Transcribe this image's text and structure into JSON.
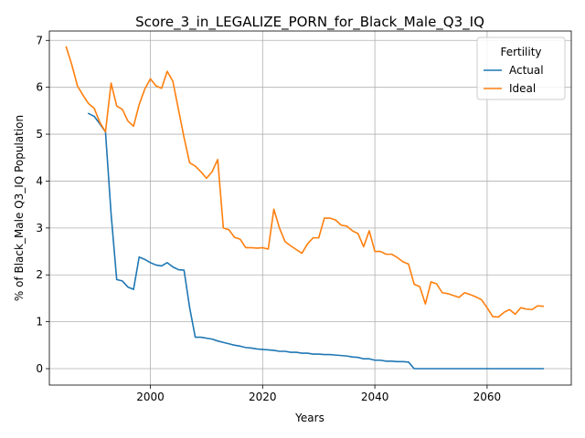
{
  "chart_data": {
    "type": "line",
    "title": "Score_3_in_LEGALIZE_PORN_for_Black_Male_Q3_IQ",
    "xlabel": "Years",
    "ylabel": "% of Black_Male Q3_IQ Population",
    "xlim": [
      1982,
      2075
    ],
    "ylim": [
      -0.35,
      7.2
    ],
    "xticks": [
      2000,
      2020,
      2040,
      2060
    ],
    "yticks": [
      0,
      1,
      2,
      3,
      4,
      5,
      6,
      7
    ],
    "grid": true,
    "legend": {
      "title": "Fertility",
      "placement": "top-right"
    },
    "series": [
      {
        "name": "Actual",
        "color": "#1f77b4",
        "points": [
          [
            1989,
            5.44
          ],
          [
            1990,
            5.38
          ],
          [
            1991,
            5.22
          ],
          [
            1992,
            5.05
          ],
          [
            1993,
            3.3
          ],
          [
            1994,
            1.9
          ],
          [
            1995,
            1.87
          ],
          [
            1996,
            1.74
          ],
          [
            1997,
            1.69
          ],
          [
            1998,
            2.38
          ],
          [
            1999,
            2.33
          ],
          [
            2000,
            2.26
          ],
          [
            2001,
            2.21
          ],
          [
            2002,
            2.19
          ],
          [
            2003,
            2.26
          ],
          [
            2004,
            2.17
          ],
          [
            2005,
            2.11
          ],
          [
            2006,
            2.1
          ],
          [
            2007,
            1.3
          ],
          [
            2008,
            0.67
          ],
          [
            2009,
            0.67
          ],
          [
            2010,
            0.65
          ],
          [
            2011,
            0.63
          ],
          [
            2012,
            0.59
          ],
          [
            2013,
            0.56
          ],
          [
            2014,
            0.53
          ],
          [
            2015,
            0.5
          ],
          [
            2016,
            0.48
          ],
          [
            2017,
            0.45
          ],
          [
            2018,
            0.44
          ],
          [
            2019,
            0.42
          ],
          [
            2020,
            0.41
          ],
          [
            2021,
            0.4
          ],
          [
            2022,
            0.39
          ],
          [
            2023,
            0.37
          ],
          [
            2024,
            0.37
          ],
          [
            2025,
            0.35
          ],
          [
            2026,
            0.35
          ],
          [
            2027,
            0.33
          ],
          [
            2028,
            0.33
          ],
          [
            2029,
            0.31
          ],
          [
            2030,
            0.31
          ],
          [
            2031,
            0.3
          ],
          [
            2032,
            0.3
          ],
          [
            2033,
            0.29
          ],
          [
            2034,
            0.28
          ],
          [
            2035,
            0.27
          ],
          [
            2036,
            0.25
          ],
          [
            2037,
            0.24
          ],
          [
            2038,
            0.21
          ],
          [
            2039,
            0.21
          ],
          [
            2040,
            0.18
          ],
          [
            2041,
            0.18
          ],
          [
            2042,
            0.16
          ],
          [
            2043,
            0.16
          ],
          [
            2044,
            0.15
          ],
          [
            2045,
            0.15
          ],
          [
            2046,
            0.14
          ],
          [
            2047,
            0.0
          ],
          [
            2048,
            0.0
          ],
          [
            2050,
            0.0
          ],
          [
            2055,
            0.0
          ],
          [
            2060,
            0.0
          ],
          [
            2065,
            0.0
          ],
          [
            2070,
            0.0
          ]
        ]
      },
      {
        "name": "Ideal",
        "color": "#ff7f0e",
        "points": [
          [
            1985,
            6.86
          ],
          [
            1986,
            6.48
          ],
          [
            1987,
            6.03
          ],
          [
            1988,
            5.83
          ],
          [
            1989,
            5.65
          ],
          [
            1990,
            5.55
          ],
          [
            1991,
            5.25
          ],
          [
            1992,
            5.05
          ],
          [
            1993,
            6.09
          ],
          [
            1994,
            5.6
          ],
          [
            1995,
            5.53
          ],
          [
            1996,
            5.28
          ],
          [
            1997,
            5.17
          ],
          [
            1998,
            5.63
          ],
          [
            1999,
            5.96
          ],
          [
            2000,
            6.18
          ],
          [
            2001,
            6.03
          ],
          [
            2002,
            5.98
          ],
          [
            2003,
            6.34
          ],
          [
            2004,
            6.13
          ],
          [
            2005,
            5.53
          ],
          [
            2006,
            4.93
          ],
          [
            2007,
            4.39
          ],
          [
            2008,
            4.32
          ],
          [
            2009,
            4.2
          ],
          [
            2010,
            4.06
          ],
          [
            2011,
            4.2
          ],
          [
            2012,
            4.46
          ],
          [
            2013,
            3.0
          ],
          [
            2014,
            2.96
          ],
          [
            2015,
            2.8
          ],
          [
            2016,
            2.76
          ],
          [
            2017,
            2.58
          ],
          [
            2018,
            2.58
          ],
          [
            2019,
            2.57
          ],
          [
            2020,
            2.58
          ],
          [
            2021,
            2.55
          ],
          [
            2022,
            3.4
          ],
          [
            2023,
            3.0
          ],
          [
            2024,
            2.71
          ],
          [
            2025,
            2.62
          ],
          [
            2026,
            2.54
          ],
          [
            2027,
            2.46
          ],
          [
            2028,
            2.66
          ],
          [
            2029,
            2.79
          ],
          [
            2030,
            2.79
          ],
          [
            2031,
            3.21
          ],
          [
            2032,
            3.21
          ],
          [
            2033,
            3.17
          ],
          [
            2034,
            3.06
          ],
          [
            2035,
            3.04
          ],
          [
            2036,
            2.94
          ],
          [
            2037,
            2.88
          ],
          [
            2038,
            2.6
          ],
          [
            2039,
            2.94
          ],
          [
            2040,
            2.5
          ],
          [
            2041,
            2.5
          ],
          [
            2042,
            2.44
          ],
          [
            2043,
            2.44
          ],
          [
            2044,
            2.37
          ],
          [
            2045,
            2.28
          ],
          [
            2046,
            2.23
          ],
          [
            2047,
            1.8
          ],
          [
            2048,
            1.75
          ],
          [
            2049,
            1.38
          ],
          [
            2050,
            1.85
          ],
          [
            2051,
            1.81
          ],
          [
            2052,
            1.62
          ],
          [
            2053,
            1.6
          ],
          [
            2054,
            1.56
          ],
          [
            2055,
            1.52
          ],
          [
            2056,
            1.62
          ],
          [
            2057,
            1.58
          ],
          [
            2058,
            1.53
          ],
          [
            2059,
            1.47
          ],
          [
            2060,
            1.3
          ],
          [
            2061,
            1.11
          ],
          [
            2062,
            1.1
          ],
          [
            2063,
            1.2
          ],
          [
            2064,
            1.26
          ],
          [
            2065,
            1.16
          ],
          [
            2066,
            1.3
          ],
          [
            2067,
            1.27
          ],
          [
            2068,
            1.26
          ],
          [
            2069,
            1.34
          ],
          [
            2070,
            1.33
          ]
        ]
      }
    ]
  }
}
